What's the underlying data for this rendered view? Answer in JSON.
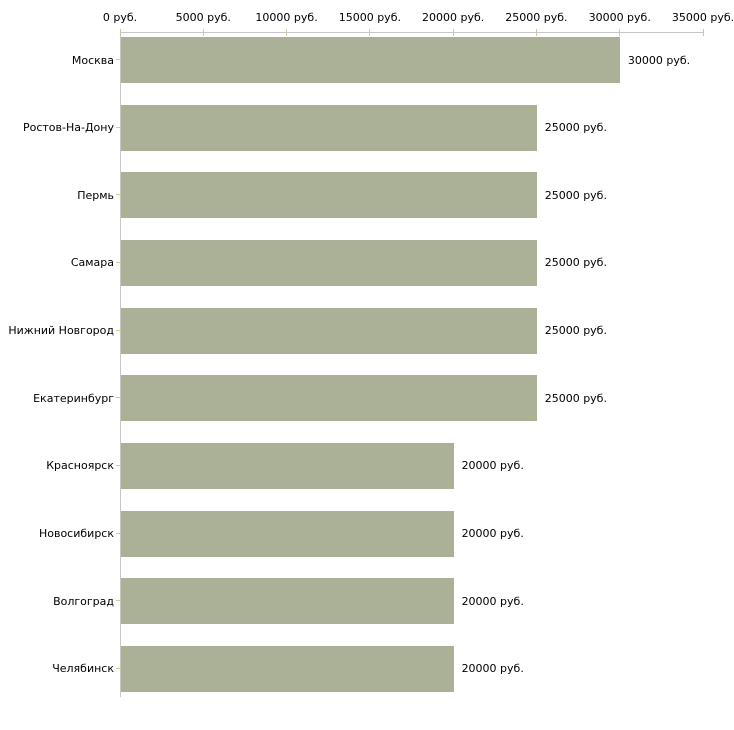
{
  "chart_data": {
    "type": "bar",
    "orientation": "horizontal",
    "title": "",
    "xlabel": "",
    "ylabel": "",
    "unit": "руб.",
    "categories": [
      "Москва",
      "Ростов-На-Дону",
      "Пермь",
      "Самара",
      "Нижний Новгород",
      "Екатеринбург",
      "Красноярск",
      "Новосибирск",
      "Волгоград",
      "Челябинск"
    ],
    "values": [
      30000,
      25000,
      25000,
      25000,
      25000,
      25000,
      20000,
      20000,
      20000,
      20000
    ],
    "value_labels": [
      "30000 руб.",
      "25000 руб.",
      "25000 руб.",
      "25000 руб.",
      "25000 руб.",
      "25000 руб.",
      "20000 руб.",
      "20000 руб.",
      "20000 руб.",
      "20000 руб."
    ],
    "x_tick_values": [
      0,
      5000,
      10000,
      15000,
      20000,
      25000,
      30000,
      35000
    ],
    "x_tick_labels": [
      "0 руб.",
      "5000 руб.",
      "10000 руб.",
      "15000 руб.",
      "20000 руб.",
      "25000 руб.",
      "30000 руб.",
      "35000 руб."
    ],
    "xlim": [
      0,
      35000
    ],
    "grid": false,
    "legend": false,
    "axis_position": "top-left",
    "colors": {
      "bar": "#abb196",
      "axis_line": "#c6c6c6",
      "tick": "#cccc99",
      "text": "#000000",
      "background": "#ffffff"
    }
  }
}
